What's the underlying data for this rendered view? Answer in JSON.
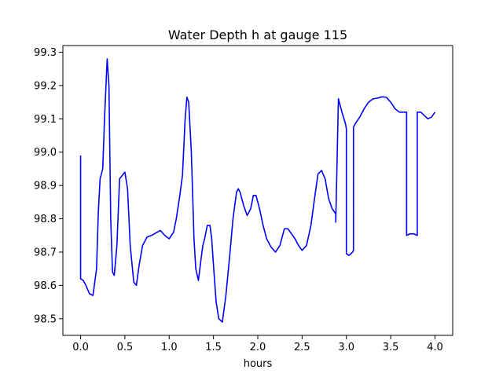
{
  "chart_data": {
    "type": "line",
    "title": "Water Depth h at gauge 115",
    "xlabel": "hours",
    "ylabel": "",
    "xlim": [
      -0.2,
      4.2
    ],
    "ylim": [
      98.45,
      99.32
    ],
    "xticks": [
      0.0,
      0.5,
      1.0,
      1.5,
      2.0,
      2.5,
      3.0,
      3.5,
      4.0
    ],
    "xtick_labels": [
      "0.0",
      "0.5",
      "1.0",
      "1.5",
      "2.0",
      "2.5",
      "3.0",
      "3.5",
      "4.0"
    ],
    "yticks": [
      98.5,
      98.6,
      98.7,
      98.8,
      98.9,
      99.0,
      99.1,
      99.2,
      99.3
    ],
    "ytick_labels": [
      "98.5",
      "98.6",
      "98.7",
      "98.8",
      "98.9",
      "99.0",
      "99.1",
      "99.2",
      "99.3"
    ],
    "grid": false,
    "series": [
      {
        "color": "#0000ff",
        "x": [
          0.0,
          0.0,
          0.03,
          0.06,
          0.1,
          0.14,
          0.18,
          0.2,
          0.22,
          0.25,
          0.27,
          0.3,
          0.32,
          0.34,
          0.36,
          0.38,
          0.41,
          0.44,
          0.47,
          0.5,
          0.53,
          0.56,
          0.6,
          0.63,
          0.66,
          0.7,
          0.75,
          0.8,
          0.9,
          0.95,
          1.0,
          1.05,
          1.08,
          1.12,
          1.15,
          1.18,
          1.2,
          1.22,
          1.25,
          1.28,
          1.3,
          1.33,
          1.36,
          1.38,
          1.4,
          1.43,
          1.46,
          1.48,
          1.5,
          1.53,
          1.56,
          1.6,
          1.64,
          1.68,
          1.72,
          1.76,
          1.78,
          1.8,
          1.84,
          1.88,
          1.92,
          1.95,
          1.98,
          2.02,
          2.06,
          2.1,
          2.15,
          2.2,
          2.25,
          2.3,
          2.34,
          2.38,
          2.42,
          2.46,
          2.5,
          2.55,
          2.6,
          2.64,
          2.68,
          2.72,
          2.76,
          2.8,
          2.84,
          2.88,
          2.88,
          2.91,
          2.95,
          2.99,
          3.0,
          3.0,
          3.03,
          3.07,
          3.08,
          3.08,
          3.1,
          3.15,
          3.2,
          3.25,
          3.3,
          3.35,
          3.4,
          3.45,
          3.5,
          3.55,
          3.6,
          3.65,
          3.68,
          3.68,
          3.72,
          3.76,
          3.8,
          3.8,
          3.84,
          3.88,
          3.92,
          3.96,
          4.0
        ],
        "y": [
          98.99,
          98.62,
          98.615,
          98.6,
          98.575,
          98.57,
          98.65,
          98.82,
          98.92,
          98.95,
          99.1,
          99.28,
          99.2,
          98.8,
          98.64,
          98.63,
          98.72,
          98.92,
          98.93,
          98.94,
          98.89,
          98.72,
          98.61,
          98.6,
          98.66,
          98.72,
          98.745,
          98.75,
          98.765,
          98.75,
          98.74,
          98.76,
          98.8,
          98.87,
          98.93,
          99.1,
          99.165,
          99.15,
          99.0,
          98.74,
          98.65,
          98.615,
          98.68,
          98.72,
          98.74,
          98.78,
          98.78,
          98.74,
          98.66,
          98.55,
          98.5,
          98.49,
          98.57,
          98.68,
          98.8,
          98.88,
          98.89,
          98.88,
          98.84,
          98.81,
          98.83,
          98.87,
          98.87,
          98.83,
          98.78,
          98.74,
          98.715,
          98.7,
          98.72,
          98.77,
          98.77,
          98.755,
          98.74,
          98.72,
          98.705,
          98.72,
          98.78,
          98.86,
          98.935,
          98.945,
          98.92,
          98.86,
          98.83,
          98.815,
          98.79,
          99.16,
          99.12,
          99.085,
          99.07,
          98.695,
          98.69,
          98.7,
          98.705,
          99.075,
          99.085,
          99.105,
          99.13,
          99.15,
          99.16,
          99.162,
          99.166,
          99.165,
          99.15,
          99.13,
          99.12,
          99.12,
          99.12,
          98.75,
          98.755,
          98.755,
          98.75,
          99.12,
          99.12,
          99.11,
          99.1,
          99.105,
          99.12
        ]
      }
    ]
  }
}
